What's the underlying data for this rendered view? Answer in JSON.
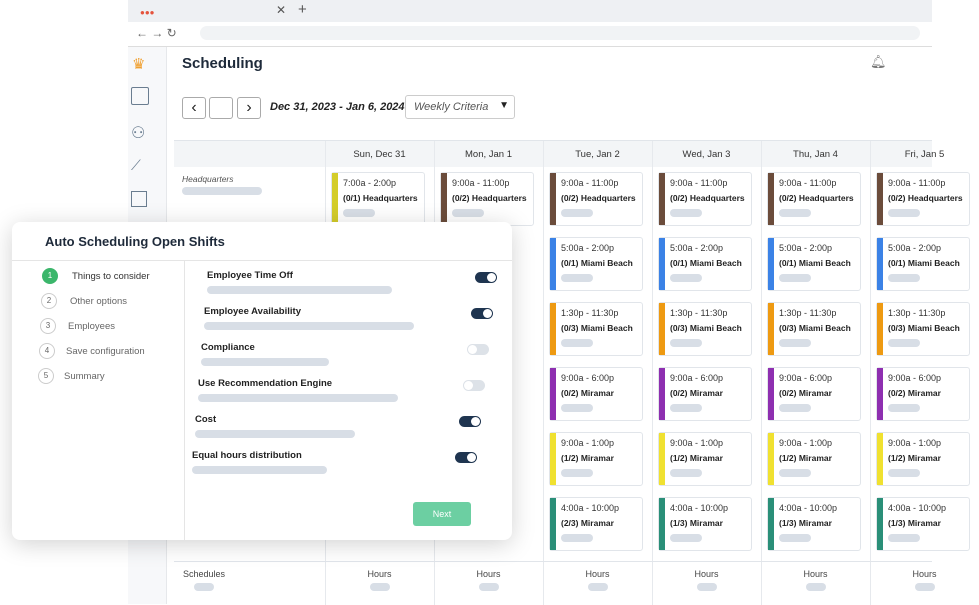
{
  "app": {
    "title": "Scheduling",
    "date_range": "Dec 31, 2023 - Jan 6, 2024",
    "view_select": "Weekly Criteria"
  },
  "schedule": {
    "columns": [
      "Sun, Dec 31",
      "Mon, Jan 1",
      "Tue, Jan 2",
      "Wed, Jan 3",
      "Thu, Jan 4",
      "Fri, Jan 5"
    ],
    "row_label": "Headquarters",
    "rows": [
      [
        {
          "time": "7:00a - 2:00p",
          "label": "(0/1) Headquarters",
          "color": "#d4cd2a"
        },
        {
          "time": "9:00a - 11:00p",
          "label": "(0/2) Headquarters",
          "color": "#6b4c3b"
        },
        {
          "time": "9:00a - 11:00p",
          "label": "(0/2) Headquarters",
          "color": "#6b4c3b"
        },
        {
          "time": "9:00a - 11:00p",
          "label": "(0/2) Headquarters",
          "color": "#6b4c3b"
        },
        {
          "time": "9:00a - 11:00p",
          "label": "(0/2) Headquarters",
          "color": "#6b4c3b"
        },
        {
          "time": "9:00a - 11:00p",
          "label": "(0/2) Headquarters",
          "color": "#6b4c3b"
        }
      ],
      [
        null,
        null,
        {
          "time": "5:00a - 2:00p",
          "label": "(0/1) Miami Beach",
          "color": "#3b82e6"
        },
        {
          "time": "5:00a - 2:00p",
          "label": "(0/1) Miami Beach",
          "color": "#3b82e6"
        },
        {
          "time": "5:00a - 2:00p",
          "label": "(0/1) Miami Beach",
          "color": "#3b82e6"
        },
        {
          "time": "5:00a - 2:00p",
          "label": "(0/1) Miami Beach",
          "color": "#3b82e6"
        }
      ],
      [
        null,
        null,
        {
          "time": "1:30p - 11:30p",
          "label": "(0/3) Miami Beach",
          "color": "#ee9a12"
        },
        {
          "time": "1:30p - 11:30p",
          "label": "(0/3) Miami Beach",
          "color": "#ee9a12"
        },
        {
          "time": "1:30p - 11:30p",
          "label": "(0/3) Miami Beach",
          "color": "#ee9a12"
        },
        {
          "time": "1:30p - 11:30p",
          "label": "(0/3) Miami Beach",
          "color": "#ee9a12"
        }
      ],
      [
        null,
        null,
        {
          "time": "9:00a - 6:00p",
          "label": "(0/2) Miramar",
          "color": "#8e2fb0"
        },
        {
          "time": "9:00a - 6:00p",
          "label": "(0/2) Miramar",
          "color": "#8e2fb0"
        },
        {
          "time": "9:00a - 6:00p",
          "label": "(0/2) Miramar",
          "color": "#8e2fb0"
        },
        {
          "time": "9:00a - 6:00p",
          "label": "(0/2) Miramar",
          "color": "#8e2fb0"
        }
      ],
      [
        null,
        null,
        {
          "time": "9:00a - 1:00p",
          "label": "(1/2) Miramar",
          "color": "#f0e130"
        },
        {
          "time": "9:00a - 1:00p",
          "label": "(1/2) Miramar",
          "color": "#f0e130"
        },
        {
          "time": "9:00a - 1:00p",
          "label": "(1/2) Miramar",
          "color": "#f0e130"
        },
        {
          "time": "9:00a - 1:00p",
          "label": "(1/2) Miramar",
          "color": "#f0e130"
        }
      ],
      [
        null,
        null,
        {
          "time": "4:00a - 10:00p",
          "label": "(2/3) Miramar",
          "color": "#2a8f78"
        },
        {
          "time": "4:00a - 10:00p",
          "label": "(1/3) Miramar",
          "color": "#2a8f78"
        },
        {
          "time": "4:00a - 10:00p",
          "label": "(1/3) Miramar",
          "color": "#2a8f78"
        },
        {
          "time": "4:00a - 10:00p",
          "label": "(1/3) Miramar",
          "color": "#2a8f78"
        }
      ]
    ],
    "footer": [
      "Schedules",
      "Hours",
      "Hours",
      "Hours",
      "Hours",
      "Hours",
      "Hours"
    ]
  },
  "modal": {
    "title": "Auto Scheduling Open Shifts",
    "steps": [
      {
        "number": "1",
        "label": "Things to consider",
        "active": true
      },
      {
        "number": "2",
        "label": "Other options",
        "active": false
      },
      {
        "number": "3",
        "label": "Employees",
        "active": false
      },
      {
        "number": "4",
        "label": "Save configuration",
        "active": false
      },
      {
        "number": "5",
        "label": "Summary",
        "active": false
      }
    ],
    "options": [
      {
        "label": "Employee Time Off",
        "enabled": true
      },
      {
        "label": "Employee Availability",
        "enabled": true
      },
      {
        "label": "Compliance",
        "enabled": false
      },
      {
        "label": "Use Recommendation Engine",
        "enabled": false
      },
      {
        "label": "Cost",
        "enabled": true
      },
      {
        "label": "Equal hours distribution",
        "enabled": true
      }
    ],
    "button": "Next"
  }
}
